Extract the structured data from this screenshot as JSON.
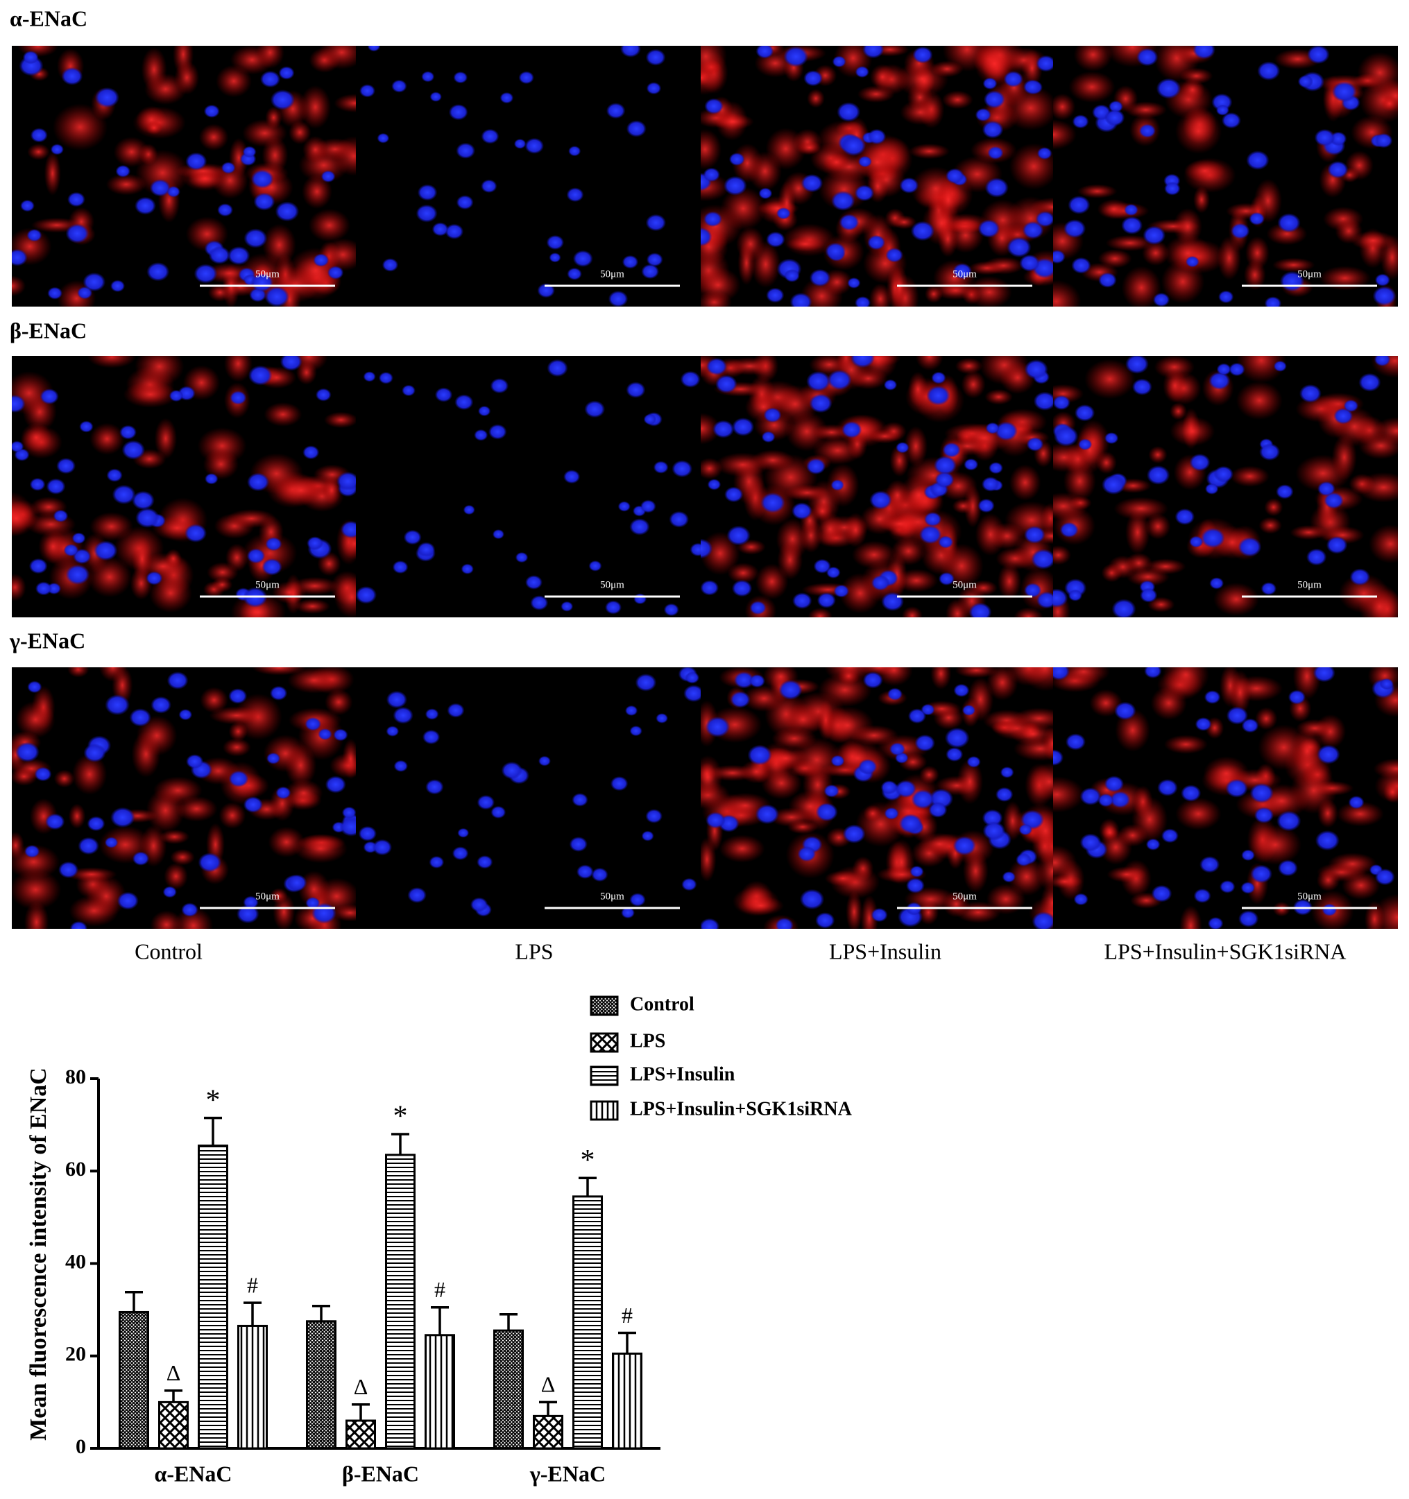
{
  "micrographs": {
    "rows": [
      "α-ENaC",
      "β-ENaC",
      "γ-ENaC"
    ],
    "columns": [
      "Control",
      "LPS",
      "LPS+Insulin",
      "LPS+Insulin+SGK1siRNA"
    ],
    "scale_bar": "50μm"
  },
  "chart_data": {
    "type": "bar",
    "y_label": "Mean fluorescence intensity of ENaC",
    "categories": [
      "α-ENaC",
      "β-ENaC",
      "γ-ENaC"
    ],
    "series": [
      {
        "name": "Control",
        "color": "#000000",
        "pattern": "crosshatch",
        "values": [
          29.5,
          27.5,
          25.5
        ],
        "errors": [
          4.3,
          3.3,
          3.5
        ]
      },
      {
        "name": "LPS",
        "color": "#000000",
        "pattern": "checker",
        "annotation": "Δ",
        "values": [
          10,
          6,
          7
        ],
        "errors": [
          2.5,
          3.5,
          3
        ]
      },
      {
        "name": "LPS+Insulin",
        "color": "#000000",
        "pattern": "horizontal",
        "annotation": "*",
        "values": [
          65.5,
          63.5,
          54.5
        ],
        "errors": [
          6,
          4.5,
          4
        ]
      },
      {
        "name": "LPS+Insulin+SGK1siRNA",
        "color": "#000000",
        "pattern": "vertical",
        "annotation": "#",
        "values": [
          26.5,
          24.5,
          20.5
        ],
        "errors": [
          5,
          6,
          4.5
        ]
      }
    ],
    "ylim": [
      0,
      80
    ],
    "yticks": [
      0,
      20,
      40,
      60,
      80
    ],
    "grid": false,
    "legend": "top"
  }
}
